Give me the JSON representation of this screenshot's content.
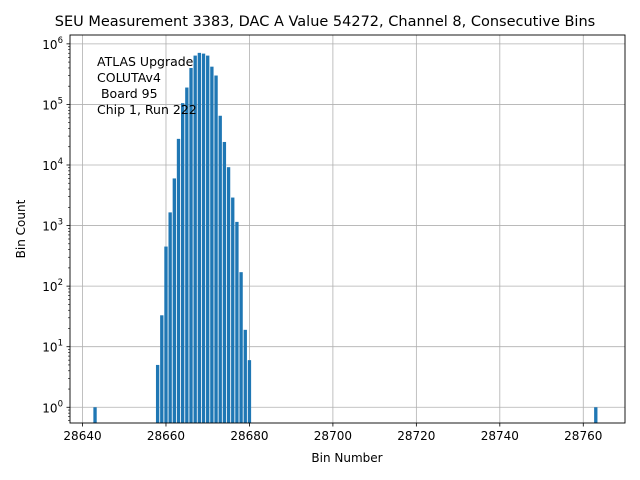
{
  "chart_data": {
    "type": "bar",
    "title": "SEU Measurement 3383, DAC A Value 54272, Channel 8, Consecutive Bins",
    "xlabel": "Bin Number",
    "ylabel": "Bin Count",
    "xlim": [
      28637,
      28770
    ],
    "ylim": [
      0.55,
      1400000
    ],
    "yscale": "log",
    "grid": true,
    "color": "#1f77b4",
    "bar_width": 0.8,
    "annotation": [
      "ATLAS Upgrade",
      "COLUTAv4",
      " Board 95",
      "Chip 1, Run 222"
    ],
    "x_ticks": [
      28640,
      28660,
      28680,
      28700,
      28720,
      28740,
      28760
    ],
    "x_tick_labels": [
      "28640",
      "28660",
      "28680",
      "28700",
      "28720",
      "28740",
      "28760"
    ],
    "y_ticks": [
      1,
      10,
      100,
      1000,
      10000,
      100000,
      1000000
    ],
    "y_tick_labels": [
      {
        "base": "10",
        "exp": "0"
      },
      {
        "base": "10",
        "exp": "1"
      },
      {
        "base": "10",
        "exp": "2"
      },
      {
        "base": "10",
        "exp": "3"
      },
      {
        "base": "10",
        "exp": "4"
      },
      {
        "base": "10",
        "exp": "5"
      },
      {
        "base": "10",
        "exp": "6"
      }
    ],
    "x": [
      28643,
      28658,
      28659,
      28660,
      28661,
      28662,
      28663,
      28664,
      28665,
      28666,
      28667,
      28668,
      28669,
      28670,
      28671,
      28672,
      28673,
      28674,
      28675,
      28676,
      28677,
      28678,
      28679,
      28680,
      28763
    ],
    "values": [
      1,
      5,
      33,
      450,
      1650,
      6000,
      27000,
      105000,
      190000,
      400000,
      640000,
      710000,
      690000,
      640000,
      420000,
      300000,
      65000,
      24000,
      9200,
      2900,
      1150,
      170,
      19,
      6,
      1
    ]
  }
}
